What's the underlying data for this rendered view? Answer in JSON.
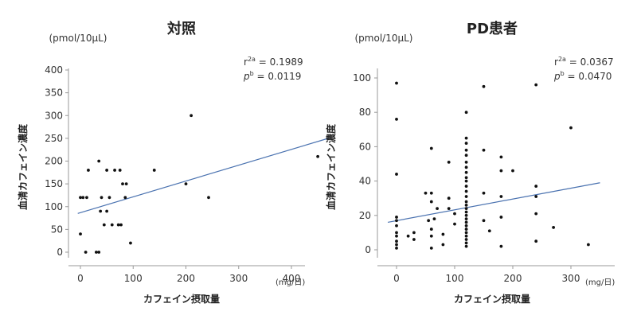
{
  "chart_data": [
    {
      "type": "scatter",
      "title": "対照",
      "unit_label": "(pmol/10μL)",
      "ylabel": "血清カフェイン濃度",
      "xlabel": "カフェイン摂取量",
      "x_unit": "(mg/日)",
      "xlim": [
        0,
        450
      ],
      "ylim": [
        0,
        400
      ],
      "x_ticks": [
        0,
        100,
        200,
        300,
        400
      ],
      "y_ticks": [
        0,
        50,
        100,
        150,
        200,
        250,
        300,
        350,
        400
      ],
      "stats": {
        "r_label": "r",
        "r_sup": "2a",
        "r_value": "0.1989",
        "p_label": "p",
        "p_sup": "b",
        "p_value": "0.0119"
      },
      "regression": {
        "x": [
          -5,
          470
        ],
        "y": [
          85,
          250
        ],
        "color": "#4a72b0"
      },
      "points": [
        {
          "x": 0,
          "y": 40
        },
        {
          "x": 0,
          "y": 120
        },
        {
          "x": 5,
          "y": 120
        },
        {
          "x": 10,
          "y": 0
        },
        {
          "x": 12,
          "y": 120
        },
        {
          "x": 15,
          "y": 180
        },
        {
          "x": 30,
          "y": 0
        },
        {
          "x": 35,
          "y": 200
        },
        {
          "x": 35,
          "y": 0
        },
        {
          "x": 38,
          "y": 90
        },
        {
          "x": 40,
          "y": 120
        },
        {
          "x": 45,
          "y": 60
        },
        {
          "x": 50,
          "y": 180
        },
        {
          "x": 50,
          "y": 90
        },
        {
          "x": 55,
          "y": 120
        },
        {
          "x": 60,
          "y": 60
        },
        {
          "x": 65,
          "y": 180
        },
        {
          "x": 72,
          "y": 60
        },
        {
          "x": 75,
          "y": 180
        },
        {
          "x": 77,
          "y": 60
        },
        {
          "x": 80,
          "y": 150
        },
        {
          "x": 85,
          "y": 120
        },
        {
          "x": 87,
          "y": 150
        },
        {
          "x": 95,
          "y": 20
        },
        {
          "x": 140,
          "y": 180
        },
        {
          "x": 200,
          "y": 150
        },
        {
          "x": 210,
          "y": 300
        },
        {
          "x": 243,
          "y": 120
        },
        {
          "x": 450,
          "y": 210
        }
      ]
    },
    {
      "type": "scatter",
      "title": "PD患者",
      "unit_label": "(pmol/10μL)",
      "ylabel": "血清カフェイン濃度",
      "xlabel": "カフェイン摂取量",
      "x_unit": "(mg/日)",
      "xlim": [
        0,
        350
      ],
      "ylim": [
        0,
        100
      ],
      "x_ticks": [
        0,
        100,
        200,
        300
      ],
      "y_ticks": [
        0,
        20,
        40,
        60,
        80,
        100
      ],
      "stats": {
        "r_label": "r",
        "r_sup": "2a",
        "r_value": "0.0367",
        "p_label": "p",
        "p_sup": "b",
        "p_value": "0.0470"
      },
      "regression": {
        "x": [
          -15,
          350
        ],
        "y": [
          16,
          39
        ],
        "color": "#4a72b0"
      },
      "points": [
        {
          "x": 0,
          "y": 97
        },
        {
          "x": 0,
          "y": 76
        },
        {
          "x": 0,
          "y": 44
        },
        {
          "x": 0,
          "y": 19
        },
        {
          "x": 0,
          "y": 17
        },
        {
          "x": 0,
          "y": 14
        },
        {
          "x": 0,
          "y": 10
        },
        {
          "x": 0,
          "y": 8
        },
        {
          "x": 0,
          "y": 5
        },
        {
          "x": 0,
          "y": 3
        },
        {
          "x": 0,
          "y": 1
        },
        {
          "x": 20,
          "y": 8
        },
        {
          "x": 30,
          "y": 6
        },
        {
          "x": 30,
          "y": 10
        },
        {
          "x": 50,
          "y": 33
        },
        {
          "x": 55,
          "y": 17
        },
        {
          "x": 60,
          "y": 59
        },
        {
          "x": 60,
          "y": 33
        },
        {
          "x": 60,
          "y": 28
        },
        {
          "x": 60,
          "y": 12
        },
        {
          "x": 60,
          "y": 8
        },
        {
          "x": 60,
          "y": 1
        },
        {
          "x": 65,
          "y": 18
        },
        {
          "x": 70,
          "y": 24
        },
        {
          "x": 80,
          "y": 9
        },
        {
          "x": 80,
          "y": 3
        },
        {
          "x": 90,
          "y": 51
        },
        {
          "x": 90,
          "y": 30
        },
        {
          "x": 90,
          "y": 24
        },
        {
          "x": 100,
          "y": 15
        },
        {
          "x": 100,
          "y": 21
        },
        {
          "x": 120,
          "y": 80
        },
        {
          "x": 120,
          "y": 65
        },
        {
          "x": 120,
          "y": 62
        },
        {
          "x": 120,
          "y": 58
        },
        {
          "x": 120,
          "y": 55
        },
        {
          "x": 120,
          "y": 51
        },
        {
          "x": 120,
          "y": 48
        },
        {
          "x": 120,
          "y": 45
        },
        {
          "x": 120,
          "y": 42
        },
        {
          "x": 120,
          "y": 40
        },
        {
          "x": 120,
          "y": 37
        },
        {
          "x": 120,
          "y": 34
        },
        {
          "x": 120,
          "y": 31
        },
        {
          "x": 120,
          "y": 28
        },
        {
          "x": 120,
          "y": 26
        },
        {
          "x": 120,
          "y": 24
        },
        {
          "x": 120,
          "y": 22
        },
        {
          "x": 120,
          "y": 20
        },
        {
          "x": 120,
          "y": 18
        },
        {
          "x": 120,
          "y": 16
        },
        {
          "x": 120,
          "y": 14
        },
        {
          "x": 120,
          "y": 12
        },
        {
          "x": 120,
          "y": 10
        },
        {
          "x": 120,
          "y": 8
        },
        {
          "x": 120,
          "y": 6
        },
        {
          "x": 120,
          "y": 4
        },
        {
          "x": 120,
          "y": 2
        },
        {
          "x": 150,
          "y": 95
        },
        {
          "x": 150,
          "y": 58
        },
        {
          "x": 150,
          "y": 33
        },
        {
          "x": 150,
          "y": 17
        },
        {
          "x": 160,
          "y": 11
        },
        {
          "x": 180,
          "y": 54
        },
        {
          "x": 180,
          "y": 46
        },
        {
          "x": 180,
          "y": 31
        },
        {
          "x": 180,
          "y": 19
        },
        {
          "x": 180,
          "y": 2
        },
        {
          "x": 200,
          "y": 46
        },
        {
          "x": 240,
          "y": 96
        },
        {
          "x": 240,
          "y": 37
        },
        {
          "x": 240,
          "y": 31
        },
        {
          "x": 240,
          "y": 21
        },
        {
          "x": 240,
          "y": 5
        },
        {
          "x": 270,
          "y": 13
        },
        {
          "x": 300,
          "y": 71
        },
        {
          "x": 330,
          "y": 3
        }
      ]
    }
  ]
}
